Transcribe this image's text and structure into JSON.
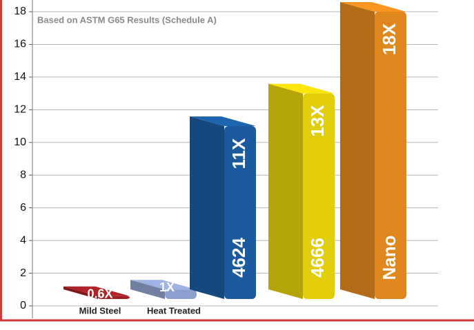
{
  "chart_data": {
    "type": "bar3d",
    "annotation": "Based on ASTM G65 Results (Schedule A)",
    "categories": [
      "Mild Steel",
      "Heat Treated",
      "4624",
      "4666",
      "Nano"
    ],
    "values": [
      0.6,
      1,
      11,
      13,
      18
    ],
    "value_labels": [
      "0.6X",
      "1X",
      "11X",
      "13X",
      "18X"
    ],
    "colors": [
      "#9e1f22",
      "#8d9fcc",
      "#1b5a9e",
      "#e2cd0b",
      "#df861d"
    ],
    "ylim": [
      0,
      18
    ],
    "yticks": [
      0,
      2,
      4,
      6,
      8,
      10,
      12,
      14,
      16,
      18
    ],
    "grid": true
  }
}
